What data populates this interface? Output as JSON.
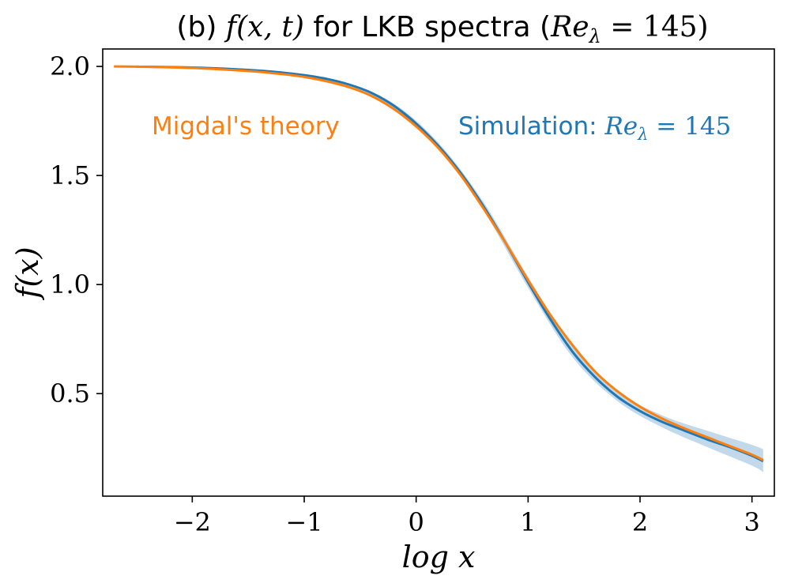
{
  "chart_data": {
    "type": "line",
    "title_prefix": "(b) ",
    "title_math1": "f(x, t)",
    "title_mid": " for LKB spectra (",
    "title_math2": "Re",
    "title_sub": "λ",
    "title_math3": " = 145)",
    "xlabel": "log x",
    "ylabel": "f(x)",
    "xlim": [
      -2.8,
      3.2
    ],
    "ylim": [
      0.03,
      2.08
    ],
    "xticks": [
      -2,
      -1,
      0,
      1,
      2,
      3
    ],
    "xtick_labels": [
      "−2",
      "−1",
      "0",
      "1",
      "2",
      "3"
    ],
    "yticks": [
      0.5,
      1.0,
      1.5,
      2.0
    ],
    "ytick_labels": [
      "0.5",
      "1.0",
      "1.5",
      "2.0"
    ],
    "colors": {
      "theory": "#ff7f0e",
      "simulation": "#1f77b4",
      "band": "#1f77b4"
    },
    "annotations": {
      "theory": "Migdal's theory",
      "simulation_prefix": "Simulation: ",
      "simulation_math": "Re",
      "simulation_sub": "λ",
      "simulation_eq": " = 145"
    },
    "series": [
      {
        "name": "Migdal's theory",
        "x": [
          -2.7,
          -2.5,
          -2.0,
          -1.5,
          -1.2,
          -1.0,
          -0.8,
          -0.6,
          -0.4,
          -0.2,
          0.0,
          0.2,
          0.4,
          0.6,
          0.8,
          1.0,
          1.2,
          1.4,
          1.6,
          1.8,
          2.0,
          2.2,
          2.4,
          2.6,
          2.8,
          3.0,
          3.1
        ],
        "y": [
          2.0,
          1.999,
          1.993,
          1.979,
          1.965,
          1.952,
          1.932,
          1.905,
          1.865,
          1.805,
          1.725,
          1.625,
          1.5,
          1.35,
          1.19,
          1.02,
          0.86,
          0.72,
          0.6,
          0.51,
          0.44,
          0.385,
          0.34,
          0.3,
          0.26,
          0.22,
          0.195
        ]
      },
      {
        "name": "Simulation: Re_λ = 145",
        "x": [
          -2.5,
          -2.0,
          -1.5,
          -1.2,
          -1.0,
          -0.8,
          -0.6,
          -0.4,
          -0.2,
          0.0,
          0.2,
          0.4,
          0.6,
          0.8,
          1.0,
          1.2,
          1.4,
          1.6,
          1.8,
          2.0,
          2.2,
          2.4,
          2.6,
          2.8,
          3.0,
          3.1
        ],
        "y": [
          1.999,
          1.995,
          1.984,
          1.972,
          1.96,
          1.943,
          1.917,
          1.879,
          1.82,
          1.738,
          1.635,
          1.51,
          1.36,
          1.19,
          1.01,
          0.84,
          0.69,
          0.575,
          0.485,
          0.42,
          0.37,
          0.33,
          0.29,
          0.255,
          0.215,
          0.19
        ]
      }
    ],
    "band": {
      "name": "Simulation uncertainty",
      "x": [
        -1.0,
        -0.6,
        -0.2,
        0.2,
        0.6,
        1.0,
        1.4,
        1.8,
        2.2,
        2.6,
        3.0,
        3.1
      ],
      "lower": [
        1.955,
        1.912,
        1.81,
        1.62,
        1.34,
        0.985,
        0.665,
        0.465,
        0.345,
        0.255,
        0.17,
        0.14
      ],
      "upper": [
        1.965,
        1.922,
        1.83,
        1.65,
        1.38,
        1.035,
        0.715,
        0.51,
        0.4,
        0.33,
        0.265,
        0.245
      ]
    }
  }
}
